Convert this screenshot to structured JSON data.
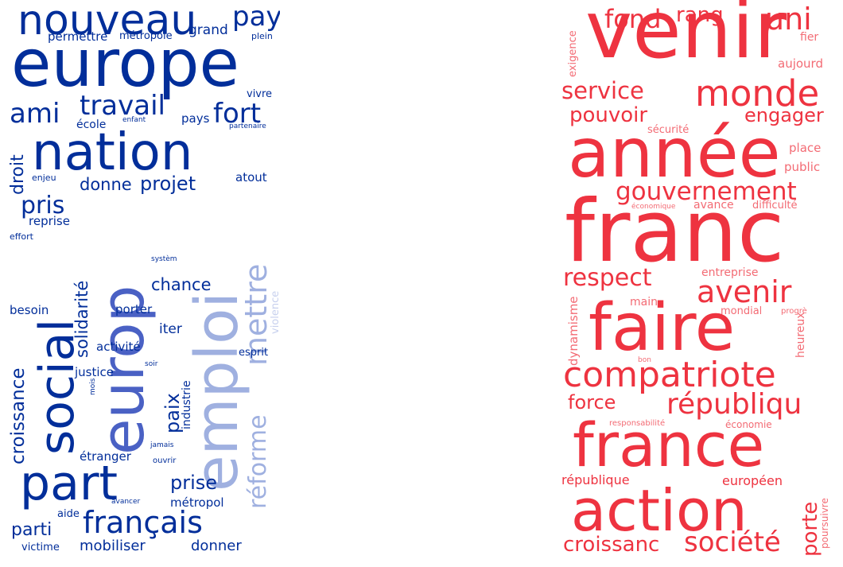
{
  "palette": {
    "blue_dark": "#022e9a",
    "blue_mid": "#4a61c4",
    "blue_light": "#9fb0e0",
    "blue_pale": "#c7d0ee",
    "red": "#ee3340",
    "red_light": "#f36b74"
  },
  "left_cloud": {
    "words": [
      {
        "text": "nouveau",
        "tone": "blue_dark"
      },
      {
        "text": "pay",
        "tone": "blue_dark"
      },
      {
        "text": "europe",
        "tone": "blue_dark"
      },
      {
        "text": "permettre",
        "tone": "blue_dark"
      },
      {
        "text": "métropole",
        "tone": "blue_dark"
      },
      {
        "text": "grand",
        "tone": "blue_dark"
      },
      {
        "text": "plein",
        "tone": "blue_dark"
      },
      {
        "text": "vivre",
        "tone": "blue_dark"
      },
      {
        "text": "ami",
        "tone": "blue_dark"
      },
      {
        "text": "travail",
        "tone": "blue_dark"
      },
      {
        "text": "fort",
        "tone": "blue_dark"
      },
      {
        "text": "école",
        "tone": "blue_dark"
      },
      {
        "text": "enfant",
        "tone": "blue_dark"
      },
      {
        "text": "pays",
        "tone": "blue_dark"
      },
      {
        "text": "partenaire",
        "tone": "blue_dark"
      },
      {
        "text": "nation",
        "tone": "blue_dark"
      },
      {
        "text": "droit",
        "tone": "blue_dark"
      },
      {
        "text": "enjeu",
        "tone": "blue_dark"
      },
      {
        "text": "donne",
        "tone": "blue_dark"
      },
      {
        "text": "projet",
        "tone": "blue_dark"
      },
      {
        "text": "atout",
        "tone": "blue_dark"
      },
      {
        "text": "pris",
        "tone": "blue_dark"
      },
      {
        "text": "reprise",
        "tone": "blue_dark"
      },
      {
        "text": "effort",
        "tone": "blue_dark"
      },
      {
        "text": "social",
        "tone": "blue_dark"
      },
      {
        "text": "solidarité",
        "tone": "blue_dark"
      },
      {
        "text": "croissance",
        "tone": "blue_dark"
      },
      {
        "text": "europ",
        "tone": "blue_mid"
      },
      {
        "text": "emploi",
        "tone": "blue_light"
      },
      {
        "text": "mettre",
        "tone": "blue_light"
      },
      {
        "text": "réforme",
        "tone": "blue_light"
      },
      {
        "text": "violence",
        "tone": "blue_pale"
      },
      {
        "text": "systèm",
        "tone": "blue_dark"
      },
      {
        "text": "chance",
        "tone": "blue_dark"
      },
      {
        "text": "besoin",
        "tone": "blue_dark"
      },
      {
        "text": "porter",
        "tone": "blue_dark"
      },
      {
        "text": "iter",
        "tone": "blue_dark"
      },
      {
        "text": "activité",
        "tone": "blue_dark"
      },
      {
        "text": "esprit",
        "tone": "blue_dark"
      },
      {
        "text": "justice",
        "tone": "blue_dark"
      },
      {
        "text": "soir",
        "tone": "blue_dark"
      },
      {
        "text": "paix",
        "tone": "blue_dark"
      },
      {
        "text": "industrie",
        "tone": "blue_dark"
      },
      {
        "text": "mois",
        "tone": "blue_dark"
      },
      {
        "text": "jamais",
        "tone": "blue_dark"
      },
      {
        "text": "étranger",
        "tone": "blue_dark"
      },
      {
        "text": "ouvrir",
        "tone": "blue_dark"
      },
      {
        "text": "part",
        "tone": "blue_dark"
      },
      {
        "text": "prise",
        "tone": "blue_dark"
      },
      {
        "text": "aide",
        "tone": "blue_dark"
      },
      {
        "text": "avancer",
        "tone": "blue_dark"
      },
      {
        "text": "métropol",
        "tone": "blue_dark"
      },
      {
        "text": "français",
        "tone": "blue_dark"
      },
      {
        "text": "parti",
        "tone": "blue_dark"
      },
      {
        "text": "victime",
        "tone": "blue_dark"
      },
      {
        "text": "mobiliser",
        "tone": "blue_dark"
      },
      {
        "text": "donner",
        "tone": "blue_dark"
      }
    ]
  },
  "right_cloud": {
    "words": [
      {
        "text": "venir",
        "tone": "red"
      },
      {
        "text": "fond",
        "tone": "red"
      },
      {
        "text": "rang",
        "tone": "red"
      },
      {
        "text": "uni",
        "tone": "red"
      },
      {
        "text": "exigence",
        "tone": "red_light"
      },
      {
        "text": "fier",
        "tone": "red_light"
      },
      {
        "text": "aujourd",
        "tone": "red_light"
      },
      {
        "text": "service",
        "tone": "red"
      },
      {
        "text": "monde",
        "tone": "red"
      },
      {
        "text": "pouvoir",
        "tone": "red"
      },
      {
        "text": "engager",
        "tone": "red"
      },
      {
        "text": "sécurité",
        "tone": "red_light"
      },
      {
        "text": "année",
        "tone": "red"
      },
      {
        "text": "place",
        "tone": "red_light"
      },
      {
        "text": "public",
        "tone": "red_light"
      },
      {
        "text": "gouvernement",
        "tone": "red"
      },
      {
        "text": "économique",
        "tone": "red_light"
      },
      {
        "text": "avance",
        "tone": "red_light"
      },
      {
        "text": "difficulté",
        "tone": "red_light"
      },
      {
        "text": "franc",
        "tone": "red"
      },
      {
        "text": "respect",
        "tone": "red"
      },
      {
        "text": "entreprise",
        "tone": "red_light"
      },
      {
        "text": "avenir",
        "tone": "red"
      },
      {
        "text": "main",
        "tone": "red_light"
      },
      {
        "text": "dynamisme",
        "tone": "red_light"
      },
      {
        "text": "mondial",
        "tone": "red_light"
      },
      {
        "text": "progrè",
        "tone": "red_light"
      },
      {
        "text": "faire",
        "tone": "red"
      },
      {
        "text": "heureux",
        "tone": "red_light"
      },
      {
        "text": "bon",
        "tone": "red_light"
      },
      {
        "text": "compatriote",
        "tone": "red"
      },
      {
        "text": "force",
        "tone": "red"
      },
      {
        "text": "républiqu",
        "tone": "red"
      },
      {
        "text": "responsabilité",
        "tone": "red_light"
      },
      {
        "text": "économie",
        "tone": "red_light"
      },
      {
        "text": "france",
        "tone": "red"
      },
      {
        "text": "république",
        "tone": "red"
      },
      {
        "text": "européen",
        "tone": "red"
      },
      {
        "text": "porte",
        "tone": "red"
      },
      {
        "text": "action",
        "tone": "red"
      },
      {
        "text": "poursuivre",
        "tone": "red_light"
      },
      {
        "text": "croissanc",
        "tone": "red"
      },
      {
        "text": "société",
        "tone": "red"
      }
    ]
  }
}
